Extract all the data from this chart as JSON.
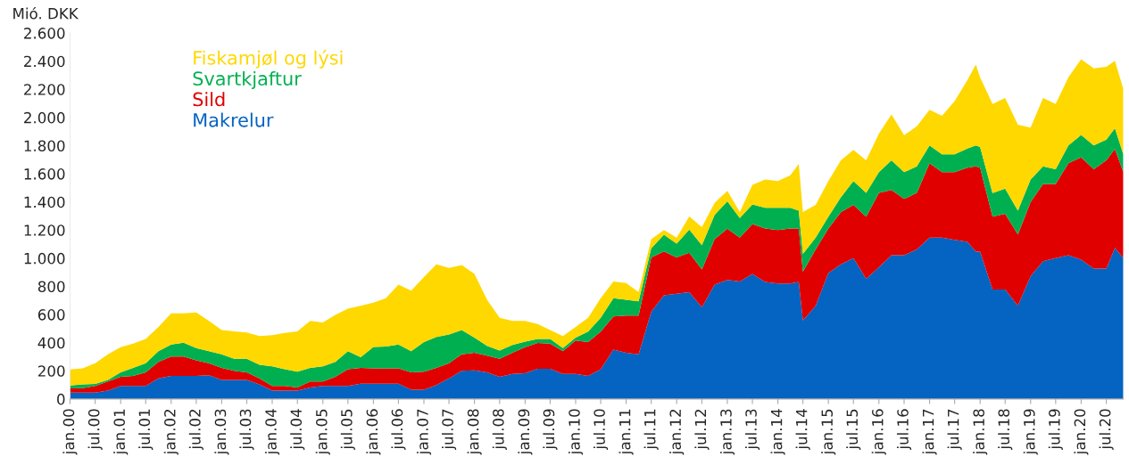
{
  "chart_data": {
    "type": "area",
    "stacked": true,
    "ylabel": "Mió. DKK",
    "x": [
      "2000-01",
      "2000-04",
      "2000-07",
      "2000-10",
      "2001-01",
      "2001-04",
      "2001-07",
      "2001-10",
      "2002-01",
      "2002-04",
      "2002-07",
      "2002-10",
      "2003-01",
      "2003-04",
      "2003-07",
      "2003-10",
      "2004-01",
      "2004-04",
      "2004-07",
      "2004-10",
      "2005-01",
      "2005-04",
      "2005-07",
      "2005-10",
      "2006-01",
      "2006-04",
      "2006-07",
      "2006-10",
      "2007-01",
      "2007-04",
      "2007-07",
      "2007-10",
      "2008-01",
      "2008-04",
      "2008-07",
      "2008-10",
      "2009-01",
      "2009-04",
      "2009-07",
      "2009-10",
      "2010-01",
      "2010-04",
      "2010-07",
      "2010-10",
      "2011-01",
      "2011-04",
      "2011-07",
      "2011-10",
      "2012-01",
      "2012-04",
      "2012-07",
      "2012-10",
      "2013-01",
      "2013-04",
      "2013-07",
      "2013-10",
      "2014-01",
      "2014-04",
      "2014-06",
      "2014-07",
      "2014-10",
      "2015-01",
      "2015-04",
      "2015-07",
      "2015-10",
      "2016-01",
      "2016-04",
      "2016-07",
      "2016-10",
      "2017-01",
      "2017-04",
      "2017-07",
      "2017-10",
      "2017-12",
      "2018-01",
      "2018-04",
      "2018-07",
      "2018-10",
      "2019-01",
      "2019-04",
      "2019-07",
      "2019-10",
      "2020-01",
      "2020-04",
      "2020-07",
      "2020-09",
      "2020-11"
    ],
    "series": [
      {
        "name": "Makrelur",
        "color": "#0563c1",
        "values": [
          45,
          45,
          45,
          60,
          92,
          92,
          92,
          146,
          163,
          163,
          163,
          168,
          135,
          135,
          135,
          103,
          60,
          60,
          60,
          82,
          92,
          92,
          92,
          108,
          108,
          108,
          108,
          65,
          65,
          99,
          146,
          200,
          204,
          189,
          157,
          178,
          183,
          215,
          215,
          178,
          178,
          163,
          211,
          350,
          329,
          318,
          619,
          737,
          748,
          759,
          651,
          813,
          845,
          834,
          888,
          831,
          820,
          820,
          831,
          557,
          662,
          894,
          957,
          1000,
          853,
          936,
          1021,
          1021,
          1063,
          1147,
          1147,
          1130,
          1116,
          1046,
          1046,
          778,
          778,
          662,
          873,
          979,
          1000,
          1021,
          989,
          926,
          926,
          1073,
          1000
        ]
      },
      {
        "name": "Sild",
        "color": "#e00000",
        "values": [
          30,
          32,
          47,
          65,
          65,
          71,
          97,
          118,
          138,
          138,
          112,
          86,
          86,
          65,
          54,
          43,
          32,
          32,
          22,
          43,
          33,
          65,
          119,
          113,
          109,
          109,
          109,
          124,
          129,
          122,
          108,
          118,
          125,
          118,
          129,
          151,
          185,
          183,
          178,
          162,
          237,
          241,
          268,
          237,
          264,
          275,
          387,
          312,
          258,
          279,
          269,
          322,
          365,
          312,
          355,
          380,
          380,
          391,
          380,
          348,
          401,
          317,
          370,
          379,
          442,
          528,
          464,
          400,
          401,
          528,
          464,
          481,
          527,
          607,
          597,
          517,
          538,
          506,
          527,
          548,
          527,
          654,
          728,
          706,
          770,
          703,
          611
        ]
      },
      {
        "name": "Svartkjaftur",
        "color": "#00b050",
        "values": [
          20,
          26,
          15,
          10,
          32,
          58,
          65,
          76,
          86,
          99,
          86,
          86,
          97,
          86,
          97,
          97,
          140,
          119,
          112,
          96,
          107,
          107,
          129,
          76,
          153,
          155,
          170,
          151,
          210,
          220,
          204,
          172,
          107,
          71,
          58,
          54,
          40,
          28,
          33,
          21,
          21,
          75,
          97,
          129,
          112,
          101,
          65,
          118,
          97,
          166,
          172,
          172,
          194,
          140,
          139,
          147,
          158,
          147,
          126,
          126,
          84,
          84,
          105,
          169,
          169,
          147,
          211,
          190,
          189,
          126,
          127,
          127,
          137,
          148,
          147,
          168,
          179,
          169,
          159,
          126,
          105,
          126,
          158,
          169,
          147,
          147,
          127
        ]
      },
      {
        "name": "Fiskamjøl og lýsi",
        "color": "#ffd800",
        "values": [
          115,
          114,
          147,
          183,
          179,
          172,
          172,
          172,
          221,
          208,
          254,
          215,
          172,
          194,
          187,
          204,
          222,
          258,
          286,
          334,
          312,
          334,
          301,
          365,
          314,
          344,
          426,
          430,
          462,
          516,
          473,
          462,
          452,
          327,
          232,
          172,
          147,
          107,
          64,
          86,
          76,
          97,
          140,
          118,
          118,
          65,
          64,
          33,
          43,
          92,
          129,
          86,
          75,
          43,
          140,
          201,
          190,
          232,
          333,
          297,
          232,
          253,
          264,
          221,
          232,
          274,
          326,
          263,
          285,
          253,
          274,
          379,
          485,
          574,
          496,
          633,
          643,
          612,
          369,
          485,
          464,
          485,
          538,
          548,
          517,
          479,
          464
        ]
      }
    ],
    "xlim": [
      "2000-01",
      "2020-11"
    ],
    "xticks": [
      {
        "value": "2000-01",
        "label": "jan.00"
      },
      {
        "value": "2000-07",
        "label": "jul.00"
      },
      {
        "value": "2001-01",
        "label": "jan.01"
      },
      {
        "value": "2001-07",
        "label": "jul.01"
      },
      {
        "value": "2002-01",
        "label": "jan.02"
      },
      {
        "value": "2002-07",
        "label": "jul.02"
      },
      {
        "value": "2003-01",
        "label": "jan.03"
      },
      {
        "value": "2003-07",
        "label": "jul.03"
      },
      {
        "value": "2004-01",
        "label": "jan.04"
      },
      {
        "value": "2004-07",
        "label": "jul.04"
      },
      {
        "value": "2005-01",
        "label": "jan.05"
      },
      {
        "value": "2005-07",
        "label": "jul.05"
      },
      {
        "value": "2006-01",
        "label": "jan.06"
      },
      {
        "value": "2006-07",
        "label": "jul.06"
      },
      {
        "value": "2007-01",
        "label": "jan.07"
      },
      {
        "value": "2007-07",
        "label": "jul.07"
      },
      {
        "value": "2008-01",
        "label": "jan.08"
      },
      {
        "value": "2008-07",
        "label": "jul.08"
      },
      {
        "value": "2009-01",
        "label": "jan.09"
      },
      {
        "value": "2009-07",
        "label": "jul.09"
      },
      {
        "value": "2010-01",
        "label": "jan.10"
      },
      {
        "value": "2010-07",
        "label": "jul.10"
      },
      {
        "value": "2011-01",
        "label": "jan.11"
      },
      {
        "value": "2011-07",
        "label": "jul.11"
      },
      {
        "value": "2012-01",
        "label": "jan.12"
      },
      {
        "value": "2012-07",
        "label": "jul.12"
      },
      {
        "value": "2013-01",
        "label": "jan.13"
      },
      {
        "value": "2013-07",
        "label": "jul.13"
      },
      {
        "value": "2014-01",
        "label": "jan.14"
      },
      {
        "value": "2014-07",
        "label": "jul.14"
      },
      {
        "value": "2015-01",
        "label": "jan.15"
      },
      {
        "value": "2015-07",
        "label": "jul.15"
      },
      {
        "value": "2016-01",
        "label": "jan.16"
      },
      {
        "value": "2016-07",
        "label": "jul.16"
      },
      {
        "value": "2017-01",
        "label": "jan.17"
      },
      {
        "value": "2017-07",
        "label": "jul.17"
      },
      {
        "value": "2018-01",
        "label": "jan.18"
      },
      {
        "value": "2018-07",
        "label": "jul.18"
      },
      {
        "value": "2019-01",
        "label": "jan.19"
      },
      {
        "value": "2019-07",
        "label": "jul.19"
      },
      {
        "value": "2020-01",
        "label": "jan.20"
      },
      {
        "value": "2020-07",
        "label": "jul.20"
      }
    ],
    "ylim": [
      0,
      2600
    ],
    "yticks": [
      0,
      {
        "value": 200,
        "label": "200"
      },
      {
        "value": 400,
        "label": "400"
      },
      {
        "value": 600,
        "label": "600"
      },
      {
        "value": 800,
        "label": "800"
      },
      {
        "value": 1000,
        "label": "1.000"
      },
      {
        "value": 1200,
        "label": "1.200"
      },
      {
        "value": 1400,
        "label": "1.400"
      },
      {
        "value": 1600,
        "label": "1.600"
      },
      {
        "value": 1800,
        "label": "1.800"
      },
      {
        "value": 2000,
        "label": "2.000"
      },
      {
        "value": 2200,
        "label": "2.200"
      },
      {
        "value": 2400,
        "label": "2.400"
      },
      {
        "value": 2600,
        "label": "2.600"
      }
    ],
    "grid": false,
    "legend": "top left"
  }
}
